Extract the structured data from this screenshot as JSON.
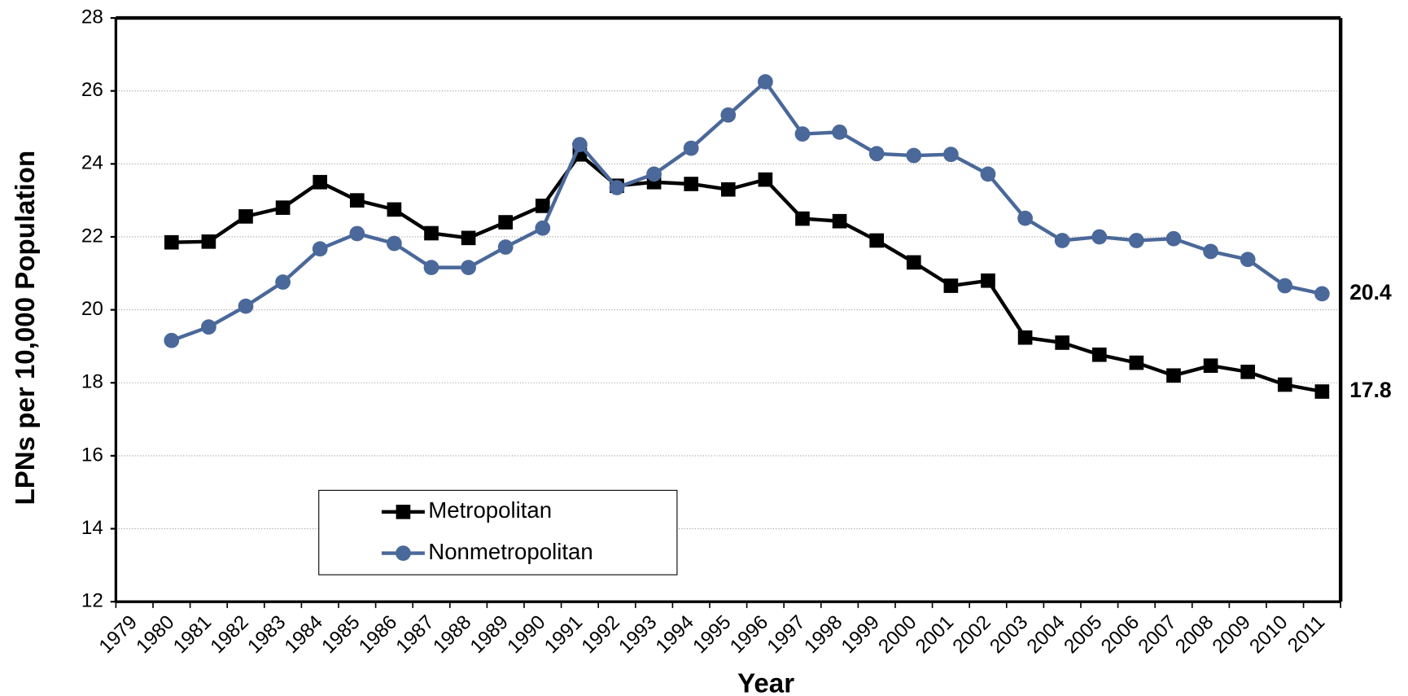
{
  "chart_data": {
    "type": "line",
    "x_label": "Year",
    "y_label": "LPNs per 10,000 Population",
    "categories": [
      "1979",
      "1980",
      "1981",
      "1982",
      "1983",
      "1984",
      "1985",
      "1986",
      "1987",
      "1988",
      "1989",
      "1990",
      "1991",
      "1992",
      "1993",
      "1994",
      "1995",
      "1996",
      "1997",
      "1998",
      "1999",
      "2000",
      "2001",
      "2002",
      "2003",
      "2004",
      "2005",
      "2006",
      "2007",
      "2008",
      "2009",
      "2010",
      "2011"
    ],
    "series": [
      {
        "name": "Metropolitan",
        "color": "#000000",
        "marker": "square",
        "values": [
          null,
          21.85,
          21.87,
          22.56,
          22.8,
          23.5,
          23.0,
          22.75,
          22.1,
          21.97,
          22.4,
          22.85,
          24.26,
          23.4,
          23.5,
          23.45,
          23.3,
          23.57,
          22.5,
          22.43,
          21.9,
          21.3,
          20.66,
          20.8,
          19.24,
          19.1,
          18.77,
          18.55,
          18.2,
          18.47,
          18.3,
          17.95,
          17.76
        ],
        "value_labels": [
          null,
          null,
          null,
          null,
          null,
          null,
          null,
          null,
          null,
          null,
          null,
          null,
          null,
          null,
          null,
          null,
          null,
          null,
          null,
          null,
          null,
          null,
          null,
          null,
          null,
          null,
          null,
          null,
          null,
          null,
          null,
          null,
          "17.8"
        ]
      },
      {
        "name": "Nonmetropolitan",
        "color": "#4a6899",
        "marker": "circle",
        "values": [
          null,
          19.16,
          19.53,
          20.1,
          20.76,
          21.67,
          22.09,
          21.82,
          21.16,
          21.16,
          21.72,
          22.24,
          24.53,
          23.35,
          23.72,
          24.43,
          25.34,
          26.25,
          24.82,
          24.87,
          24.28,
          24.23,
          24.26,
          23.72,
          22.51,
          21.9,
          22.0,
          21.9,
          21.95,
          21.6,
          21.38,
          20.66,
          20.44
        ],
        "value_labels": [
          null,
          null,
          null,
          null,
          null,
          null,
          null,
          null,
          null,
          null,
          null,
          null,
          null,
          null,
          null,
          null,
          null,
          null,
          null,
          null,
          null,
          null,
          null,
          null,
          null,
          null,
          null,
          null,
          null,
          null,
          null,
          null,
          "20.4"
        ]
      }
    ],
    "ylim": [
      12,
      28
    ],
    "yticks": [
      12,
      14,
      16,
      18,
      20,
      22,
      24,
      26,
      28
    ],
    "grid": true,
    "legend": "lower left"
  }
}
